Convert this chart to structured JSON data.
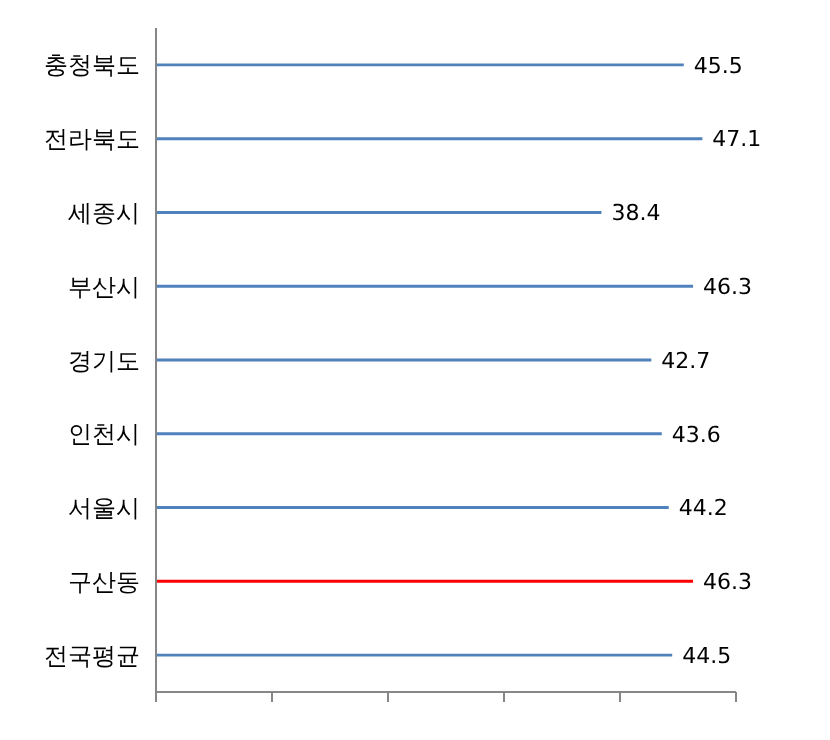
{
  "chart_data": {
    "type": "bar",
    "orientation": "horizontal",
    "categories": [
      "충청북도",
      "전라북도",
      "세종시",
      "부산시",
      "경기도",
      "인천시",
      "서울시",
      "구산동",
      "전국평균"
    ],
    "values": [
      45.5,
      47.1,
      38.4,
      46.3,
      42.7,
      43.6,
      44.2,
      46.3,
      44.5
    ],
    "colors": [
      "#4f81bd",
      "#4f81bd",
      "#4f81bd",
      "#4f81bd",
      "#4f81bd",
      "#4f81bd",
      "#4f81bd",
      "#ff0000",
      "#4f81bd"
    ],
    "xlim": [
      0,
      50
    ],
    "xticks": [
      {
        "value": 0,
        "label": null
      },
      {
        "value": 10,
        "label": null
      },
      {
        "value": 20,
        "label": null
      },
      {
        "value": 30,
        "label": null
      },
      {
        "value": 40,
        "label": null
      },
      {
        "value": 50,
        "label": null
      }
    ],
    "data_labels": true,
    "grid": false,
    "legend": false
  }
}
